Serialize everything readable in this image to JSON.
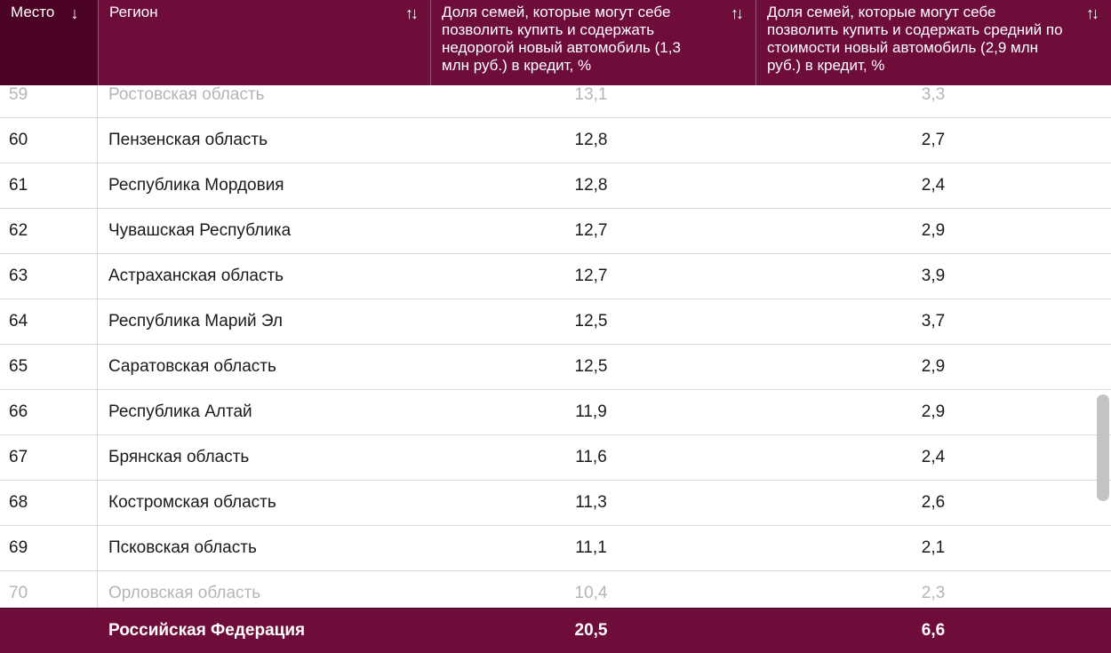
{
  "header": {
    "rank_label": "Место",
    "rank_sort_icon": "↓",
    "region_label": "Регион",
    "region_sort_icon": "↑↓",
    "cheap_label": "Доля семей, которые могут себе позволить купить и содержать недорогой новый автомобиль (1,3 млн руб.) в кредит, %",
    "cheap_sort_icon": "↑↓",
    "avg_label": "Доля семей, которые могут себе позволить купить и содержать средний по стоимости новый автомобиль (2,9 млн руб.) в кредит, %",
    "avg_sort_icon": "↑↓"
  },
  "rows": [
    {
      "rank": "59",
      "region": "Ростовская область",
      "cheap": "13,1",
      "avg": "3,3"
    },
    {
      "rank": "60",
      "region": "Пензенская область",
      "cheap": "12,8",
      "avg": "2,7"
    },
    {
      "rank": "61",
      "region": "Республика Мордовия",
      "cheap": "12,8",
      "avg": "2,4"
    },
    {
      "rank": "62",
      "region": "Чувашская Республика",
      "cheap": "12,7",
      "avg": "2,9"
    },
    {
      "rank": "63",
      "region": "Астраханская область",
      "cheap": "12,7",
      "avg": "3,9"
    },
    {
      "rank": "64",
      "region": "Республика Марий Эл",
      "cheap": "12,5",
      "avg": "3,7"
    },
    {
      "rank": "65",
      "region": "Саратовская область",
      "cheap": "12,5",
      "avg": "2,9"
    },
    {
      "rank": "66",
      "region": "Республика Алтай",
      "cheap": "11,9",
      "avg": "2,9"
    },
    {
      "rank": "67",
      "region": "Брянская область",
      "cheap": "11,6",
      "avg": "2,4"
    },
    {
      "rank": "68",
      "region": "Костромская область",
      "cheap": "11,3",
      "avg": "2,6"
    },
    {
      "rank": "69",
      "region": "Псковская область",
      "cheap": "11,1",
      "avg": "2,1"
    },
    {
      "rank": "70",
      "region": "Орловская область",
      "cheap": "10,4",
      "avg": "2,3"
    }
  ],
  "footer": {
    "region": "Российская Федерация",
    "cheap": "20,5",
    "avg": "6,6"
  },
  "colors": {
    "header_bg": "#6e0d3a",
    "header_rank_bg": "#4a0322",
    "row_border": "#d9d9d9"
  }
}
